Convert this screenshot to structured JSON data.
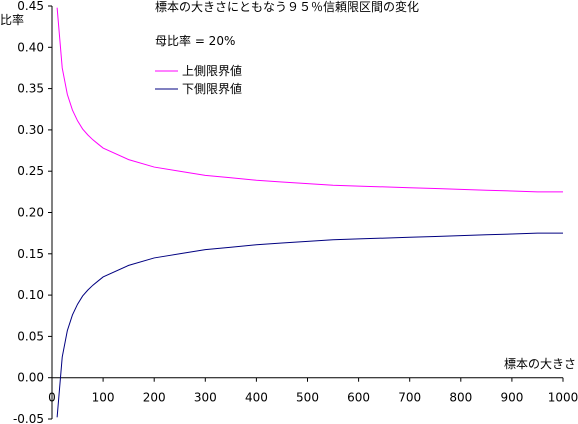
{
  "chart_data": {
    "type": "line",
    "title": "標本の大きさにともなう９５％信頼限区間の変化",
    "subtitle": "母比率 = 20%",
    "xlabel": "標本の大きさ",
    "ylabel": "比率",
    "xlim": [
      0,
      1000
    ],
    "ylim": [
      -0.05,
      0.45
    ],
    "x_ticks": [
      "0",
      "100",
      "200",
      "300",
      "400",
      "500",
      "600",
      "700",
      "800",
      "900",
      "1000"
    ],
    "y_ticks": [
      "-0.05",
      "0.00",
      "0.05",
      "0.10",
      "0.15",
      "0.20",
      "0.25",
      "0.30",
      "0.35",
      "0.40",
      "0.45"
    ],
    "grid": false,
    "legend_position": "top-center",
    "p": 0.2,
    "x": [
      10,
      20,
      30,
      40,
      50,
      60,
      70,
      80,
      90,
      100,
      150,
      200,
      250,
      300,
      350,
      400,
      450,
      500,
      550,
      600,
      650,
      700,
      750,
      800,
      850,
      900,
      950,
      1000
    ],
    "series": [
      {
        "name": "上側限界値",
        "color": "#ff00ff",
        "values": [
          0.448,
          0.375,
          0.343,
          0.324,
          0.311,
          0.301,
          0.294,
          0.288,
          0.283,
          0.278,
          0.264,
          0.255,
          0.25,
          0.245,
          0.242,
          0.239,
          0.237,
          0.235,
          0.233,
          0.232,
          0.231,
          0.23,
          0.229,
          0.228,
          0.227,
          0.226,
          0.225,
          0.225
        ]
      },
      {
        "name": "下側限界値",
        "color": "#000080",
        "values": [
          -0.048,
          0.025,
          0.057,
          0.076,
          0.089,
          0.099,
          0.106,
          0.112,
          0.117,
          0.122,
          0.136,
          0.145,
          0.15,
          0.155,
          0.158,
          0.161,
          0.163,
          0.165,
          0.167,
          0.168,
          0.169,
          0.17,
          0.171,
          0.172,
          0.173,
          0.174,
          0.175,
          0.175
        ]
      }
    ]
  }
}
